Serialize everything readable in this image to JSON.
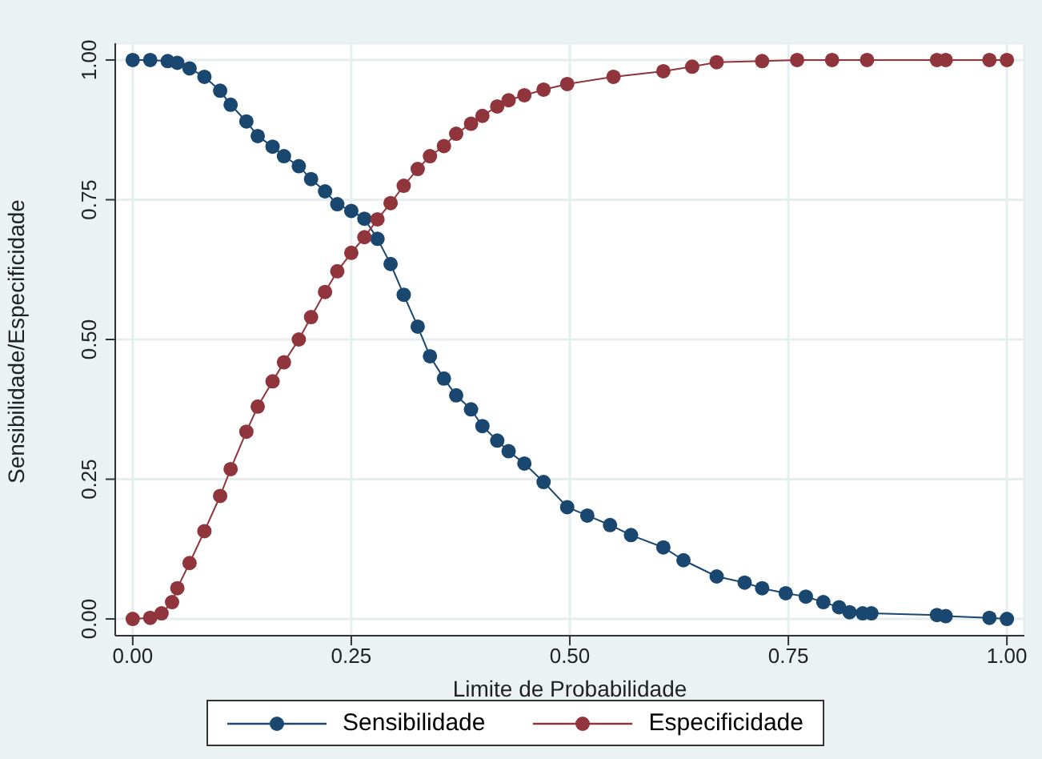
{
  "chart_data": {
    "type": "line",
    "xlabel": "Limite de Probabilidade",
    "ylabel": "Sensibilidade/Especificidade",
    "xlim": [
      -0.02,
      1.02
    ],
    "ylim": [
      -0.03,
      1.03
    ],
    "xticks": [
      {
        "value": 0,
        "label": "0.00"
      },
      {
        "value": 0.25,
        "label": "0.25"
      },
      {
        "value": 0.5,
        "label": "0.50"
      },
      {
        "value": 0.75,
        "label": "0.75"
      },
      {
        "value": 1,
        "label": "1.00"
      }
    ],
    "yticks": [
      {
        "value": 0,
        "label": "0.00"
      },
      {
        "value": 0.25,
        "label": "0.25"
      },
      {
        "value": 0.5,
        "label": "0.50"
      },
      {
        "value": 0.75,
        "label": "0.75"
      },
      {
        "value": 1,
        "label": "1.00"
      }
    ],
    "grid": true,
    "legend": "bottom",
    "marker": "circle",
    "line_style": "solid",
    "series": [
      {
        "name": "Sensibilidade",
        "color": "#1a476f",
        "x": [
          0,
          0.02,
          0.04,
          0.051,
          0.065,
          0.082,
          0.1,
          0.112,
          0.13,
          0.143,
          0.16,
          0.173,
          0.19,
          0.204,
          0.22,
          0.234,
          0.25,
          0.265,
          0.28,
          0.295,
          0.31,
          0.326,
          0.34,
          0.356,
          0.37,
          0.387,
          0.4,
          0.417,
          0.43,
          0.448,
          0.47,
          0.497,
          0.52,
          0.546,
          0.57,
          0.607,
          0.63,
          0.668,
          0.7,
          0.72,
          0.747,
          0.77,
          0.79,
          0.808,
          0.82,
          0.835,
          0.845,
          0.92,
          0.93,
          0.98,
          1.0
        ],
        "values": [
          1.0,
          1.0,
          0.998,
          0.995,
          0.985,
          0.97,
          0.945,
          0.92,
          0.89,
          0.864,
          0.845,
          0.828,
          0.81,
          0.787,
          0.765,
          0.742,
          0.73,
          0.716,
          0.68,
          0.635,
          0.58,
          0.523,
          0.47,
          0.43,
          0.4,
          0.375,
          0.345,
          0.319,
          0.3,
          0.278,
          0.245,
          0.2,
          0.185,
          0.168,
          0.15,
          0.128,
          0.105,
          0.076,
          0.065,
          0.055,
          0.046,
          0.04,
          0.03,
          0.021,
          0.012,
          0.01,
          0.01,
          0.007,
          0.005,
          0.002,
          0.0
        ]
      },
      {
        "name": "Especificidade",
        "color": "#90353b",
        "x": [
          0,
          0.02,
          0.033,
          0.045,
          0.051,
          0.065,
          0.082,
          0.1,
          0.112,
          0.13,
          0.143,
          0.16,
          0.173,
          0.19,
          0.204,
          0.22,
          0.234,
          0.25,
          0.265,
          0.28,
          0.295,
          0.31,
          0.326,
          0.34,
          0.356,
          0.37,
          0.387,
          0.4,
          0.417,
          0.43,
          0.448,
          0.47,
          0.497,
          0.55,
          0.607,
          0.64,
          0.668,
          0.72,
          0.76,
          0.8,
          0.84,
          0.92,
          0.93,
          0.98,
          1.0
        ],
        "values": [
          0.0,
          0.002,
          0.01,
          0.03,
          0.055,
          0.1,
          0.157,
          0.22,
          0.268,
          0.335,
          0.38,
          0.425,
          0.459,
          0.5,
          0.54,
          0.585,
          0.622,
          0.655,
          0.683,
          0.715,
          0.744,
          0.775,
          0.805,
          0.828,
          0.846,
          0.868,
          0.886,
          0.9,
          0.917,
          0.928,
          0.937,
          0.947,
          0.957,
          0.97,
          0.98,
          0.988,
          0.996,
          0.998,
          1.0,
          1.0,
          1.0,
          1.0,
          1.0,
          1.0,
          1.0
        ]
      }
    ]
  }
}
